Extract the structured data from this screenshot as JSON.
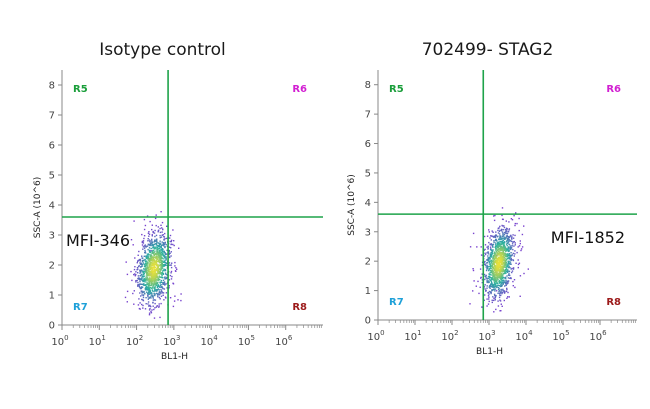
{
  "chart_data": [
    {
      "type": "scatter",
      "title": "Isotype control",
      "xlabel": "BL1-H",
      "ylabel": "SSC-A (10^6)",
      "x_scale": "log",
      "xlim": [
        1,
        10000000
      ],
      "ylim": [
        0,
        8.5
      ],
      "x_ticks": [
        {
          "value": 1,
          "base": "10",
          "exp": "0"
        },
        {
          "value": 10,
          "base": "10",
          "exp": "1"
        },
        {
          "value": 100,
          "base": "10",
          "exp": "2"
        },
        {
          "value": 1000,
          "base": "10",
          "exp": "3"
        },
        {
          "value": 10000,
          "base": "10",
          "exp": "4"
        },
        {
          "value": 100000,
          "base": "10",
          "exp": "5"
        },
        {
          "value": 1000000,
          "base": "10",
          "exp": "6"
        }
      ],
      "y_ticks": [
        "0",
        "1",
        "2",
        "3",
        "4",
        "5",
        "6",
        "7",
        "8"
      ],
      "gate": {
        "x": 700,
        "y": 3.6
      },
      "quadrants": [
        {
          "label": "R5",
          "position": "top-left",
          "color": "#1a9e3a"
        },
        {
          "label": "R6",
          "position": "top-right",
          "color": "#d21fd2"
        },
        {
          "label": "R7",
          "position": "bottom-left",
          "color": "#1ea0d8"
        },
        {
          "label": "R8",
          "position": "bottom-right",
          "color": "#9c1a1a"
        }
      ],
      "annotation": {
        "text": "MFI-346"
      },
      "population": {
        "center_log10_x": 2.45,
        "center_y": 1.9,
        "spread_log10_x": 0.22,
        "spread_y": 0.6,
        "count": 1200
      }
    },
    {
      "type": "scatter",
      "title": "702499- STAG2",
      "xlabel": "BL1-H",
      "ylabel": "SSC-A (10^6)",
      "x_scale": "log",
      "xlim": [
        1,
        10000000
      ],
      "ylim": [
        0,
        8.5
      ],
      "x_ticks": [
        {
          "value": 1,
          "base": "10",
          "exp": "0"
        },
        {
          "value": 10,
          "base": "10",
          "exp": "1"
        },
        {
          "value": 100,
          "base": "10",
          "exp": "2"
        },
        {
          "value": 1000,
          "base": "10",
          "exp": "3"
        },
        {
          "value": 10000,
          "base": "10",
          "exp": "4"
        },
        {
          "value": 100000,
          "base": "10",
          "exp": "5"
        },
        {
          "value": 1000000,
          "base": "10",
          "exp": "6"
        }
      ],
      "y_ticks": [
        "0",
        "1",
        "2",
        "3",
        "4",
        "5",
        "6",
        "7",
        "8"
      ],
      "gate": {
        "x": 700,
        "y": 3.6
      },
      "quadrants": [
        {
          "label": "R5",
          "position": "top-left",
          "color": "#1a9e3a"
        },
        {
          "label": "R6",
          "position": "top-right",
          "color": "#d21fd2"
        },
        {
          "label": "R7",
          "position": "bottom-left",
          "color": "#1ea0d8"
        },
        {
          "label": "R8",
          "position": "bottom-right",
          "color": "#9c1a1a"
        }
      ],
      "annotation": {
        "text": "MFI-1852"
      },
      "population": {
        "center_log10_x": 3.25,
        "center_y": 1.95,
        "spread_log10_x": 0.2,
        "spread_y": 0.6,
        "count": 1200
      }
    }
  ],
  "colors": {
    "gate_line": "#1ea34a",
    "axis": "#888888",
    "density_low": "#7b3fd0",
    "density_mid": "#28b0a0",
    "density_high": "#e8e03a"
  }
}
